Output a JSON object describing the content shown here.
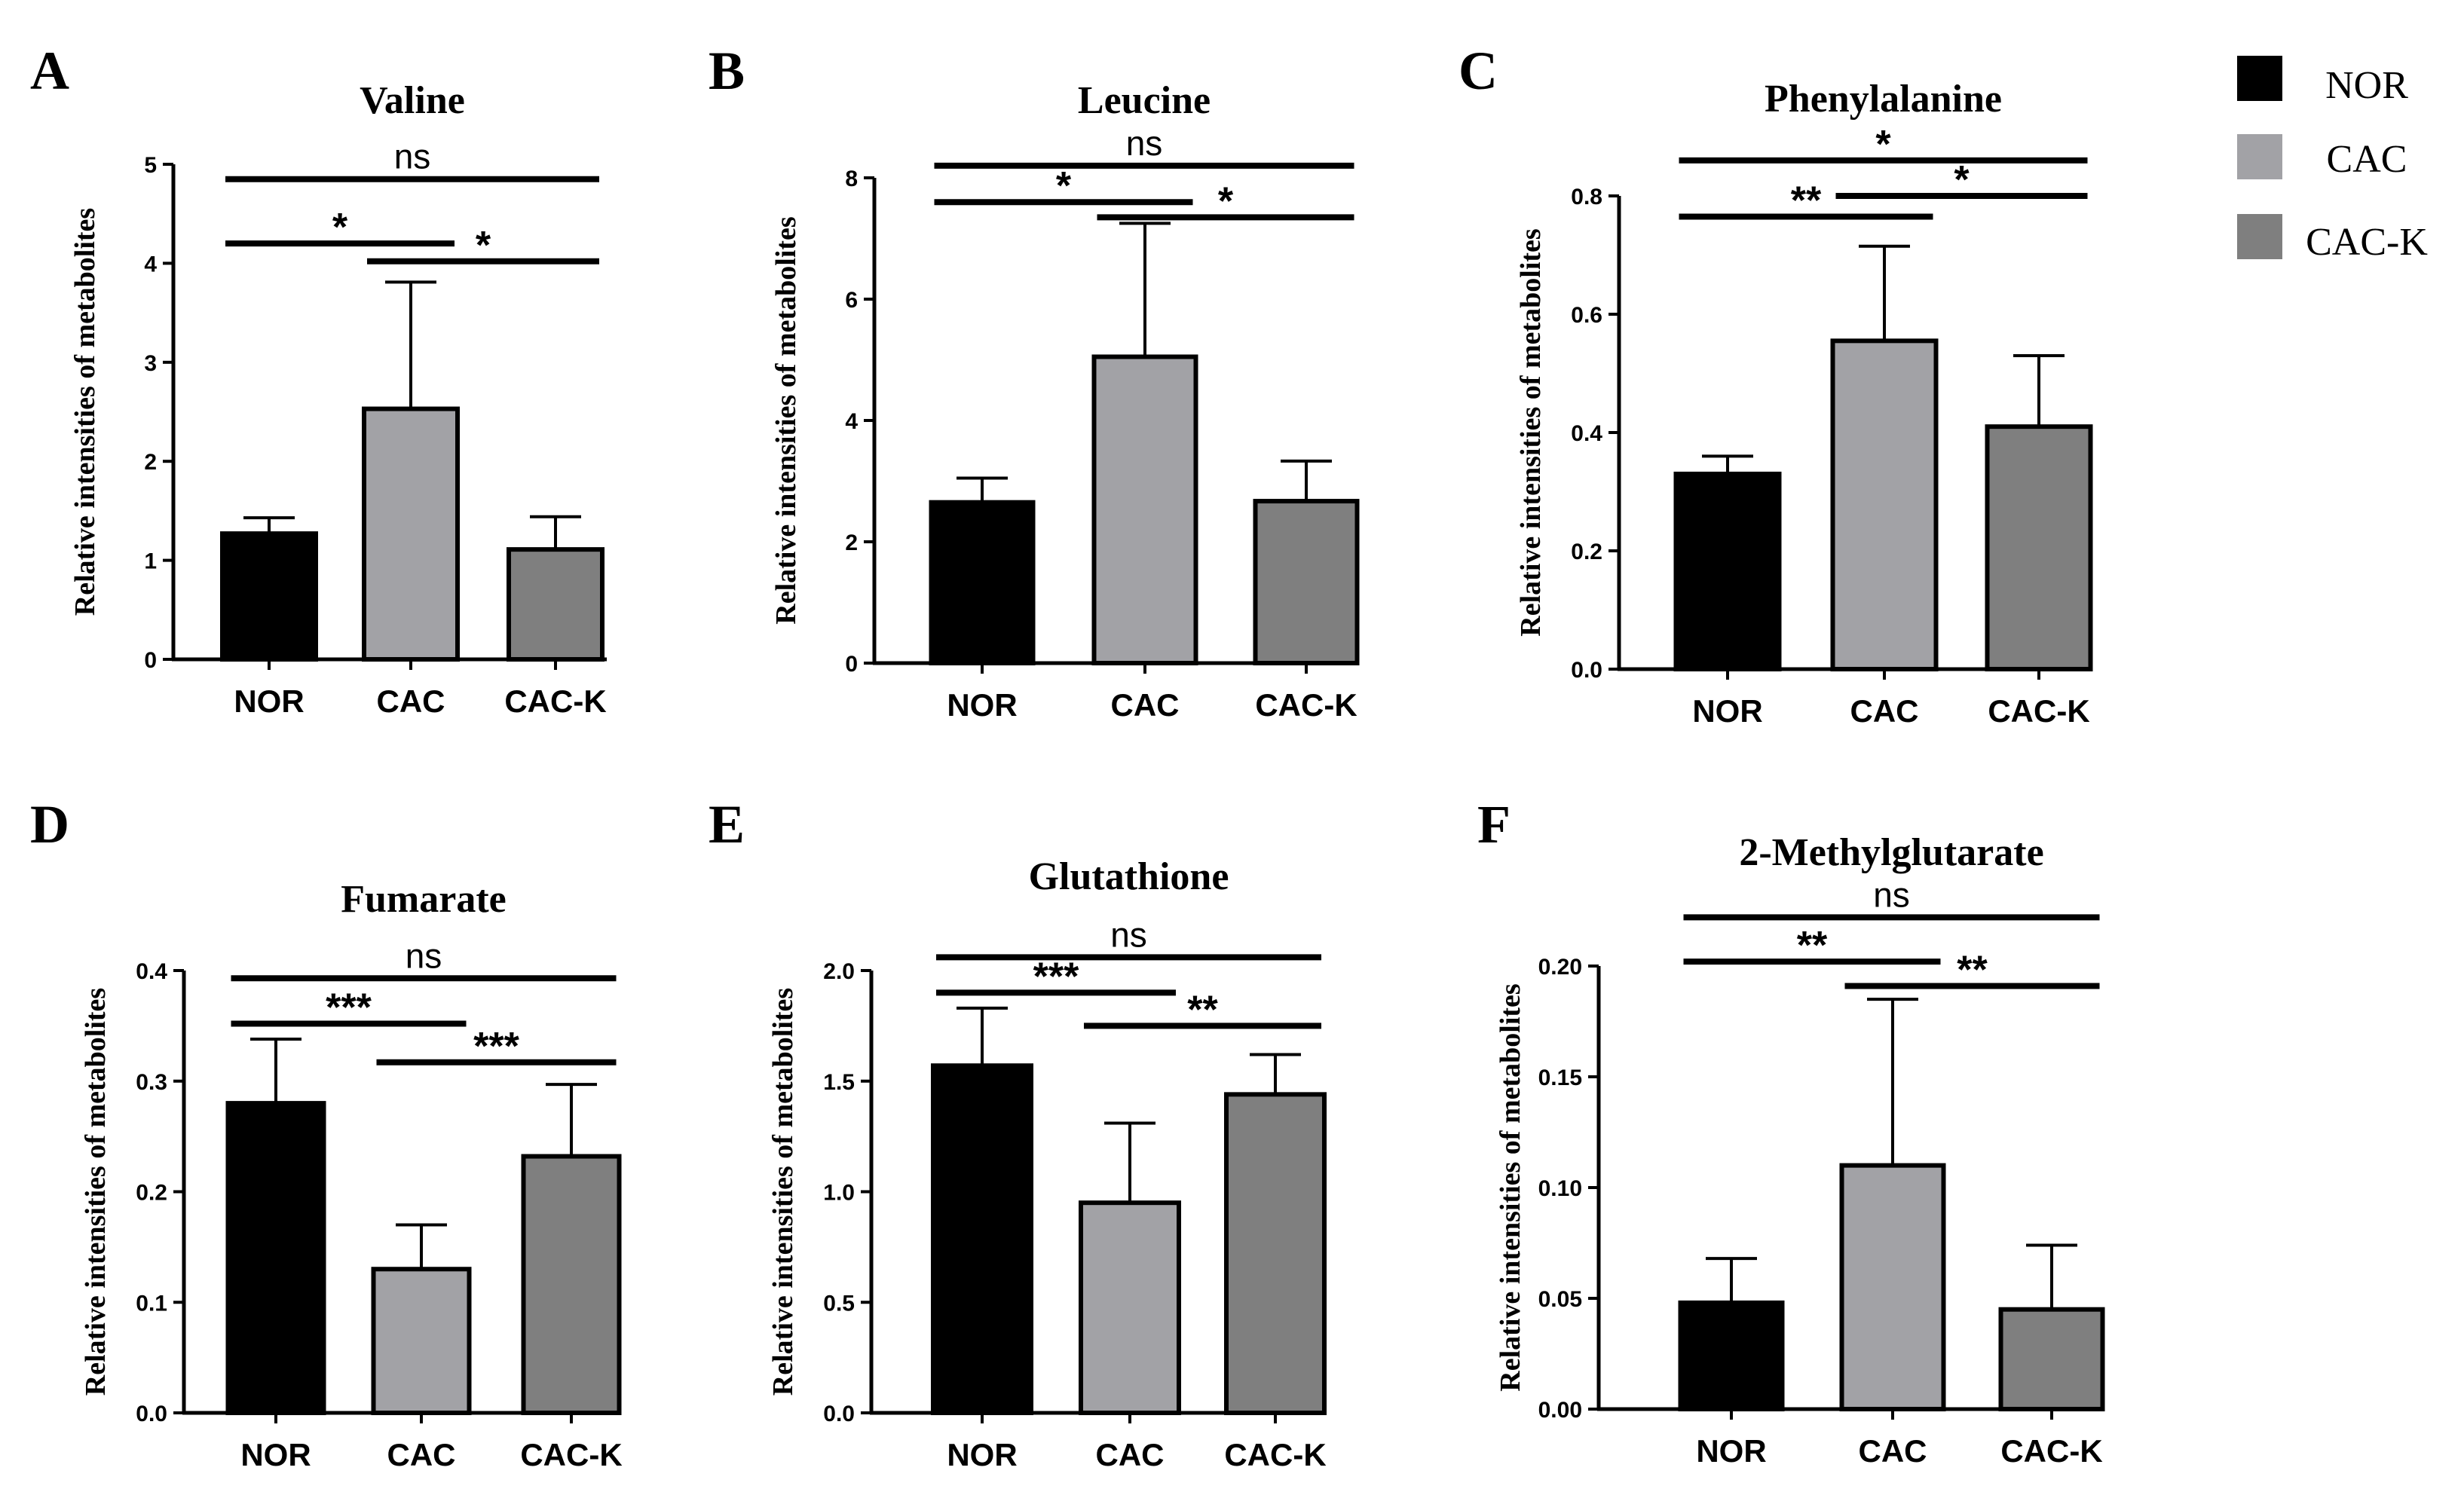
{
  "legend": [
    {
      "label": "NOR",
      "color": "#000000"
    },
    {
      "label": "CAC",
      "color": "#a2a2a6"
    },
    {
      "label": "CAC-K",
      "color": "#7f7f7f"
    }
  ],
  "chart_data": [
    {
      "panel": "A",
      "type": "bar",
      "title": "Valine",
      "ylabel": "Relative intensities of metabolites",
      "categories": [
        "NOR",
        "CAC",
        "CAC-K"
      ],
      "values": [
        1.27,
        2.53,
        1.11
      ],
      "errors": [
        0.16,
        1.28,
        0.33
      ],
      "ylim": [
        0,
        5
      ],
      "yticks": [
        0,
        1,
        2,
        3,
        4,
        5
      ],
      "ytick_labels": [
        "0",
        "1",
        "2",
        "3",
        "4",
        "5"
      ],
      "significance": [
        {
          "from": 0,
          "to": 2,
          "level": 4.85,
          "label": "ns"
        },
        {
          "from": 0,
          "to": 1,
          "level": 4.2,
          "label": "*"
        },
        {
          "from": 1,
          "to": 2,
          "level": 4.02,
          "label": "*"
        }
      ]
    },
    {
      "panel": "B",
      "type": "bar",
      "title": "Leucine",
      "ylabel": "Relative intensities of metabolites",
      "categories": [
        "NOR",
        "CAC",
        "CAC-K"
      ],
      "values": [
        2.65,
        5.05,
        2.67
      ],
      "errors": [
        0.4,
        2.2,
        0.66
      ],
      "ylim": [
        0,
        8
      ],
      "yticks": [
        0,
        2,
        4,
        6,
        8
      ],
      "ytick_labels": [
        "0",
        "2",
        "4",
        "6",
        "8"
      ],
      "significance": [
        {
          "from": 0,
          "to": 2,
          "level": 8.2,
          "label": "ns"
        },
        {
          "from": 0,
          "to": 1,
          "level": 7.6,
          "label": "*"
        },
        {
          "from": 1,
          "to": 2,
          "level": 7.35,
          "label": "*"
        }
      ]
    },
    {
      "panel": "C",
      "type": "bar",
      "title": "Phenylalanine",
      "ylabel": "Relative intensities of metabolites",
      "categories": [
        "NOR",
        "CAC",
        "CAC-K"
      ],
      "values": [
        0.33,
        0.555,
        0.41
      ],
      "errors": [
        0.03,
        0.16,
        0.12
      ],
      "ylim": [
        0,
        0.8
      ],
      "yticks": [
        0,
        0.2,
        0.4,
        0.6,
        0.8
      ],
      "ytick_labels": [
        "0.0",
        "0.2",
        "0.4",
        "0.6",
        "0.8"
      ],
      "significance": [
        {
          "from": 0,
          "to": 2,
          "level": 0.86,
          "label": "*"
        },
        {
          "from": 0,
          "to": 1,
          "level": 0.765,
          "label": "**"
        },
        {
          "from": 1,
          "to": 2,
          "level": 0.8,
          "label": "*"
        }
      ]
    },
    {
      "panel": "D",
      "type": "bar",
      "title": "Fumarate",
      "ylabel": "Relative intensities of metabolites",
      "categories": [
        "NOR",
        "CAC",
        "CAC-K"
      ],
      "values": [
        0.28,
        0.13,
        0.232
      ],
      "errors": [
        0.058,
        0.04,
        0.065
      ],
      "ylim": [
        0,
        0.4
      ],
      "yticks": [
        0,
        0.1,
        0.2,
        0.3,
        0.4
      ],
      "ytick_labels": [
        "0.0",
        "0.1",
        "0.2",
        "0.3",
        "0.4"
      ],
      "significance": [
        {
          "from": 0,
          "to": 2,
          "level": 0.393,
          "label": "ns"
        },
        {
          "from": 0,
          "to": 1,
          "level": 0.352,
          "label": "***"
        },
        {
          "from": 1,
          "to": 2,
          "level": 0.317,
          "label": "***"
        }
      ]
    },
    {
      "panel": "E",
      "type": "bar",
      "title": "Glutathione",
      "ylabel": "Relative intensities of metabolites",
      "categories": [
        "NOR",
        "CAC",
        "CAC-K"
      ],
      "values": [
        1.57,
        0.95,
        1.44
      ],
      "errors": [
        0.26,
        0.36,
        0.18
      ],
      "ylim": [
        0,
        2.0
      ],
      "yticks": [
        0,
        0.5,
        1.0,
        1.5,
        2.0
      ],
      "ytick_labels": [
        "0.0",
        "0.5",
        "1.0",
        "1.5",
        "2.0"
      ],
      "significance": [
        {
          "from": 0,
          "to": 2,
          "level": 2.06,
          "label": "ns"
        },
        {
          "from": 0,
          "to": 1,
          "level": 1.9,
          "label": "***"
        },
        {
          "from": 1,
          "to": 2,
          "level": 1.75,
          "label": "**"
        }
      ]
    },
    {
      "panel": "F",
      "type": "bar",
      "title": "2-Methylglutarate",
      "ylabel": "Relative intensities of metabolites",
      "categories": [
        "NOR",
        "CAC",
        "CAC-K"
      ],
      "values": [
        0.048,
        0.11,
        0.045
      ],
      "errors": [
        0.02,
        0.075,
        0.029
      ],
      "ylim": [
        0,
        0.2
      ],
      "yticks": [
        0,
        0.05,
        0.1,
        0.15,
        0.2
      ],
      "ytick_labels": [
        "0.00",
        "0.05",
        "0.10",
        "0.15",
        "0.20"
      ],
      "significance": [
        {
          "from": 0,
          "to": 2,
          "level": 0.222,
          "label": "ns"
        },
        {
          "from": 0,
          "to": 1,
          "level": 0.202,
          "label": "**"
        },
        {
          "from": 1,
          "to": 2,
          "level": 0.191,
          "label": "**"
        }
      ]
    }
  ]
}
